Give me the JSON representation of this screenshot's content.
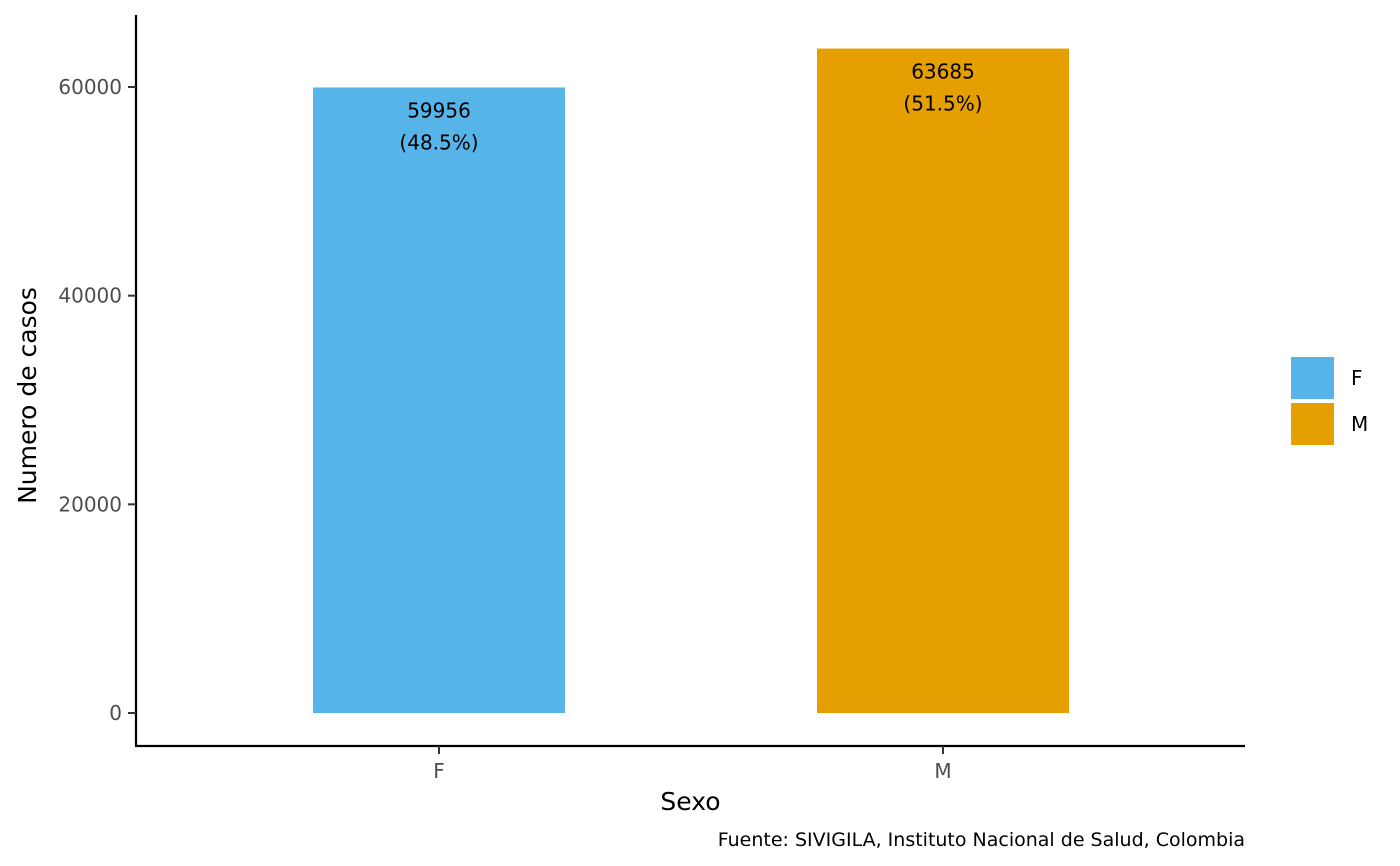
{
  "chart_data": {
    "type": "bar",
    "categories": [
      "F",
      "M"
    ],
    "values": [
      59956,
      63685
    ],
    "data_labels": [
      [
        "59956",
        "(48.5%)"
      ],
      [
        "63685",
        "(51.5%)"
      ]
    ],
    "colors": [
      "#56B4E9",
      "#E69F00"
    ],
    "xlabel": "Sexo",
    "ylabel": "Numero de casos",
    "ylim": [
      0,
      66000
    ],
    "yticks": [
      0,
      20000,
      40000,
      60000
    ],
    "ytick_labels": [
      "0",
      "20000",
      "40000",
      "60000"
    ],
    "grid": false,
    "legend": {
      "placement": "right",
      "entries": [
        "F",
        "M"
      ]
    },
    "caption": "Fuente: SIVIGILA, Instituto Nacional de Salud, Colombia"
  }
}
